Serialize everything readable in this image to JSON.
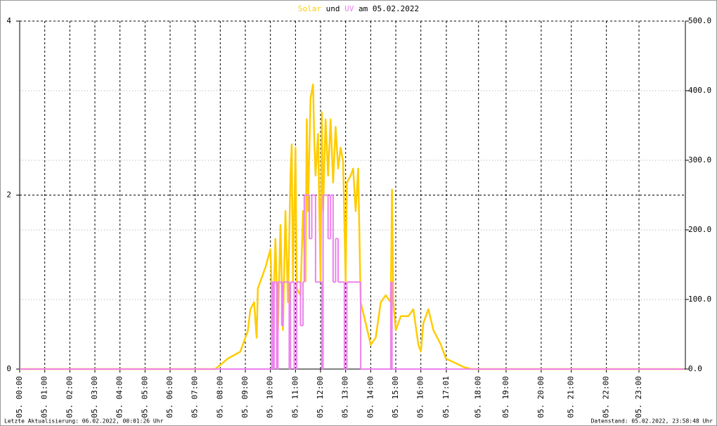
{
  "chart_data": {
    "type": "line",
    "title_connector": "und",
    "title_date": "am 05.02.2022",
    "xlim": [
      0,
      26.55
    ],
    "xticks": [
      {
        "value": 0,
        "label": "05. 00:00"
      },
      {
        "value": 1,
        "label": "05. 01:00"
      },
      {
        "value": 2,
        "label": "05. 02:00"
      },
      {
        "value": 3,
        "label": "05. 03:00"
      },
      {
        "value": 4,
        "label": "05. 04:00"
      },
      {
        "value": 5,
        "label": "05. 05:00"
      },
      {
        "value": 6,
        "label": "05. 06:00"
      },
      {
        "value": 7,
        "label": "05. 07:00"
      },
      {
        "value": 8,
        "label": "05. 08:00"
      },
      {
        "value": 9,
        "label": "05. 09:00"
      },
      {
        "value": 10,
        "label": "05. 10:00"
      },
      {
        "value": 11,
        "label": "05. 11:00"
      },
      {
        "value": 12,
        "label": "05. 12:00"
      },
      {
        "value": 13,
        "label": "05. 13:00"
      },
      {
        "value": 14,
        "label": "05. 14:00"
      },
      {
        "value": 15,
        "label": "05. 15:00"
      },
      {
        "value": 16,
        "label": "05. 16:00"
      },
      {
        "value": 17.017,
        "label": "05. 17:01"
      },
      {
        "value": 18.3,
        "label": "05. 18:00"
      },
      {
        "value": 19.4,
        "label": "05. 19:00"
      },
      {
        "value": 20.8,
        "label": "05. 20:00"
      },
      {
        "value": 22.0,
        "label": "05. 21:00"
      },
      {
        "value": 23.4,
        "label": "05. 22:00"
      },
      {
        "value": 24.7,
        "label": "05. 23:00"
      }
    ],
    "ylim": [
      0,
      4
    ],
    "yticks": [
      0,
      2,
      4
    ],
    "y2lim": [
      0,
      500
    ],
    "y2ticks": [
      {
        "value": 0,
        "label": "0.0"
      },
      {
        "value": 100,
        "label": "100.0"
      },
      {
        "value": 200,
        "label": "200.0"
      },
      {
        "value": 300,
        "label": "300.0"
      },
      {
        "value": 400,
        "label": "400.0"
      },
      {
        "value": 500,
        "label": "500.0"
      }
    ],
    "series": [
      {
        "name": "Solar",
        "color": "#ffcc00",
        "axis": "y2",
        "x": [
          0,
          7.8,
          8.3,
          8.8,
          9.1,
          9.2,
          9.35,
          9.45,
          9.5,
          9.8,
          10.0,
          10.1,
          10.2,
          10.3,
          10.4,
          10.5,
          10.6,
          10.7,
          10.8,
          10.85,
          10.9,
          11.0,
          11.05,
          11.2,
          11.3,
          11.4,
          11.45,
          11.5,
          11.6,
          11.7,
          11.75,
          11.8,
          11.9,
          12.0,
          12.05,
          12.1,
          12.2,
          12.3,
          12.4,
          12.5,
          12.6,
          12.7,
          12.8,
          12.9,
          13.0,
          13.05,
          13.2,
          13.3,
          13.4,
          13.5,
          13.6,
          13.8,
          14.0,
          14.2,
          14.4,
          14.6,
          14.8,
          14.85,
          14.9,
          15.0,
          15.2,
          15.5,
          15.7,
          15.9,
          16.0,
          16.1,
          16.3,
          16.5,
          16.8,
          17.0,
          17.3,
          17.7,
          18.0,
          26.5
        ],
        "values": [
          0,
          0,
          15,
          25,
          55,
          86,
          96,
          45,
          116,
          146,
          172,
          66,
          187,
          56,
          207,
          56,
          227,
          96,
          278,
          323,
          126,
          318,
          116,
          106,
          227,
          126,
          359,
          227,
          389,
          409,
          328,
          278,
          338,
          126,
          369,
          227,
          359,
          278,
          359,
          268,
          348,
          288,
          318,
          298,
          126,
          268,
          278,
          288,
          227,
          288,
          96,
          66,
          35,
          45,
          96,
          106,
          96,
          258,
          96,
          56,
          76,
          76,
          86,
          35,
          25,
          66,
          86,
          56,
          35,
          15,
          10,
          3,
          0,
          0
        ]
      },
      {
        "name": "UV",
        "color": "#ee82ee",
        "axis": "y",
        "x": [
          0,
          10.05,
          10.1,
          10.15,
          10.25,
          10.3,
          10.45,
          10.5,
          10.75,
          10.8,
          10.95,
          11.05,
          11.2,
          11.3,
          11.35,
          11.55,
          11.65,
          11.8,
          12.05,
          12.1,
          12.3,
          12.4,
          12.5,
          12.6,
          12.7,
          12.95,
          13.05,
          13.6,
          14.8,
          14.85,
          26.5
        ],
        "values": [
          0,
          1,
          0,
          1,
          0,
          1,
          0.5,
          1,
          0,
          1,
          0,
          1,
          0.5,
          1,
          2,
          1.5,
          2,
          1,
          0,
          2,
          1.5,
          2,
          1,
          1.5,
          1,
          0,
          1,
          0,
          1,
          0,
          0
        ]
      }
    ],
    "footer_left": "Letzte Aktualisierung: 06.02.2022, 00:01:26 Uhr",
    "footer_right": "Datenstand: 05.02.2022, 23:58:48 Uhr"
  }
}
